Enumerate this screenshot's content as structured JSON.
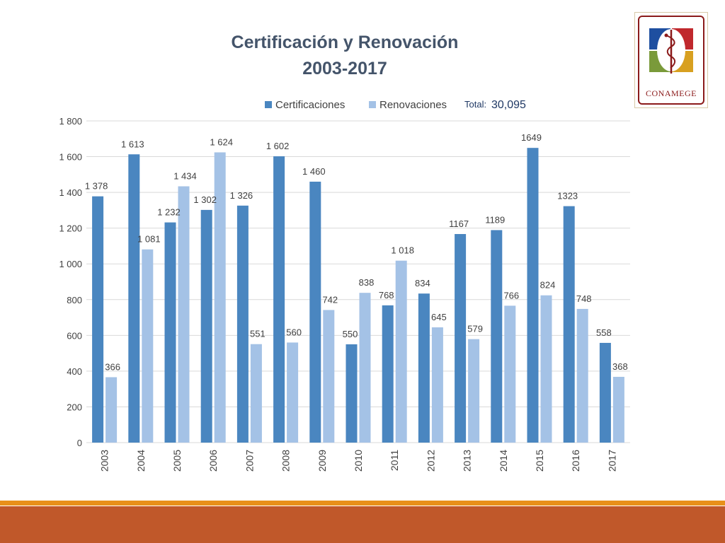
{
  "chart_data": {
    "type": "bar",
    "title": [
      "Certificación y Renovación",
      "2003-2017"
    ],
    "categories": [
      "2003",
      "2004",
      "2005",
      "2006",
      "2007",
      "2008",
      "2009",
      "2010",
      "2011",
      "2012",
      "2013",
      "2014",
      "2015",
      "2016",
      "2017"
    ],
    "series": [
      {
        "name": "Certificaciones",
        "values": [
          1378,
          1613,
          1232,
          1302,
          1326,
          1602,
          1460,
          550,
          768,
          834,
          1167,
          1189,
          1649,
          1323,
          558
        ],
        "labels": [
          "1 378",
          "1 613",
          "1 232",
          "1 302",
          "1 326",
          "1 602",
          "1 460",
          "550",
          "768",
          "834",
          "1167",
          "1189",
          "1649",
          "1323",
          "558"
        ],
        "color": "#4a86c0"
      },
      {
        "name": "Renovaciones",
        "values": [
          366,
          1081,
          1434,
          1624,
          551,
          560,
          742,
          838,
          1018,
          645,
          579,
          766,
          824,
          748,
          368
        ],
        "labels": [
          "366",
          "1 081",
          "1 434",
          "1 624",
          "551",
          "560",
          "742",
          "838",
          "1 018",
          "645",
          "579",
          "766",
          "824",
          "748",
          "368"
        ],
        "color": "#a4c2e6"
      }
    ],
    "ylim": [
      0,
      1800
    ],
    "yticks": [
      0,
      200,
      400,
      600,
      800,
      1000,
      1200,
      1400,
      1600,
      1800
    ],
    "ytick_labels": [
      "0",
      "200",
      "400",
      "600",
      "800",
      "1 000",
      "1 200",
      "1 400",
      "1 600",
      "1 800"
    ],
    "grid": true,
    "legend": "top",
    "total_label": "Total:",
    "total_value": "30,095"
  },
  "logo": {
    "text": "CONAMEGE",
    "colors": [
      "#1e4fa0",
      "#c0282d",
      "#7a9a3a",
      "#d8a020",
      "#8b1a1a"
    ]
  },
  "theme": {
    "accent_line": "#e8901a",
    "band": "#c0582a"
  }
}
